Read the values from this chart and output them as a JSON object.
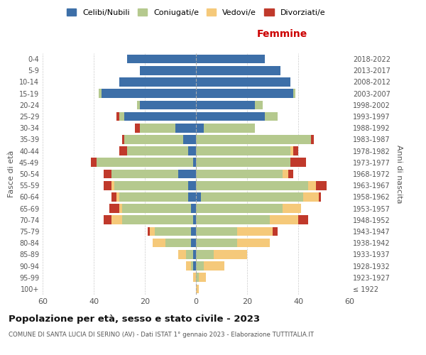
{
  "age_groups": [
    "100+",
    "95-99",
    "90-94",
    "85-89",
    "80-84",
    "75-79",
    "70-74",
    "65-69",
    "60-64",
    "55-59",
    "50-54",
    "45-49",
    "40-44",
    "35-39",
    "30-34",
    "25-29",
    "20-24",
    "15-19",
    "10-14",
    "5-9",
    "0-4"
  ],
  "birth_years": [
    "≤ 1922",
    "1923-1927",
    "1928-1932",
    "1933-1937",
    "1938-1942",
    "1943-1947",
    "1948-1952",
    "1953-1957",
    "1958-1962",
    "1963-1967",
    "1968-1972",
    "1973-1977",
    "1978-1982",
    "1983-1987",
    "1988-1992",
    "1993-1997",
    "1998-2002",
    "2003-2007",
    "2008-2012",
    "2013-2017",
    "2018-2022"
  ],
  "males": {
    "celibe": [
      0,
      0,
      1,
      1,
      2,
      2,
      1,
      2,
      3,
      3,
      7,
      1,
      3,
      5,
      8,
      28,
      22,
      37,
      30,
      22,
      27
    ],
    "coniugato": [
      0,
      0,
      1,
      3,
      10,
      14,
      28,
      27,
      27,
      29,
      26,
      38,
      24,
      23,
      14,
      2,
      1,
      1,
      0,
      0,
      0
    ],
    "vedovo": [
      0,
      1,
      2,
      3,
      5,
      2,
      4,
      1,
      1,
      1,
      0,
      0,
      0,
      0,
      0,
      0,
      0,
      0,
      0,
      0,
      0
    ],
    "divorziato": [
      0,
      0,
      0,
      0,
      0,
      1,
      3,
      4,
      2,
      3,
      3,
      2,
      3,
      1,
      2,
      1,
      0,
      0,
      0,
      0,
      0
    ]
  },
  "females": {
    "nubile": [
      0,
      0,
      0,
      0,
      0,
      0,
      0,
      0,
      2,
      0,
      0,
      0,
      0,
      0,
      3,
      27,
      23,
      38,
      37,
      33,
      27
    ],
    "coniugata": [
      0,
      1,
      3,
      7,
      16,
      16,
      29,
      34,
      40,
      44,
      34,
      37,
      37,
      45,
      20,
      5,
      3,
      1,
      0,
      0,
      0
    ],
    "vedova": [
      1,
      3,
      8,
      13,
      13,
      14,
      11,
      7,
      6,
      3,
      2,
      0,
      1,
      0,
      0,
      0,
      0,
      0,
      0,
      0,
      0
    ],
    "divorziata": [
      0,
      0,
      0,
      0,
      0,
      2,
      4,
      0,
      1,
      4,
      2,
      6,
      2,
      1,
      0,
      0,
      0,
      0,
      0,
      0,
      0
    ]
  },
  "colors": {
    "celibe": "#3d6fa8",
    "coniugato": "#b5c98e",
    "vedovo": "#f5c97a",
    "divorziato": "#c0392b"
  },
  "title": "Popolazione per età, sesso e stato civile - 2023",
  "subtitle": "COMUNE DI SANTA LUCIA DI SERINO (AV) - Dati ISTAT 1° gennaio 2023 - Elaborazione TUTTITALIA.IT",
  "xlabel_right": "Femmine",
  "ylabel_left": "Fasce di età",
  "ylabel_right": "Anni di nascita",
  "xlim": 60,
  "legend_labels": [
    "Celibi/Nubili",
    "Coniugati/e",
    "Vedovi/e",
    "Divorziati/e"
  ],
  "background_color": "#ffffff"
}
